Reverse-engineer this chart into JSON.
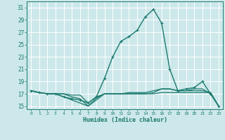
{
  "xlabel": "Humidex (Indice chaleur)",
  "bg_color": "#cde8ea",
  "grid_color": "#ffffff",
  "line_color": "#1a7a6e",
  "xlim": [
    -0.5,
    23.5
  ],
  "ylim": [
    14.5,
    32.0
  ],
  "yticks": [
    15,
    17,
    19,
    21,
    23,
    25,
    27,
    29,
    31
  ],
  "xticks": [
    0,
    1,
    2,
    3,
    4,
    5,
    6,
    7,
    8,
    9,
    10,
    11,
    12,
    13,
    14,
    15,
    16,
    17,
    18,
    19,
    20,
    21,
    22,
    23
  ],
  "lines": [
    {
      "x": [
        0,
        1,
        2,
        3,
        4,
        5,
        6,
        7,
        8,
        9,
        10,
        11,
        12,
        13,
        14,
        15,
        16,
        17,
        18,
        19,
        20,
        21,
        22,
        23
      ],
      "y": [
        17.5,
        17.2,
        17.0,
        17.0,
        17.0,
        16.8,
        16.8,
        15.5,
        16.5,
        17.0,
        17.0,
        17.0,
        17.0,
        17.0,
        17.0,
        17.0,
        17.2,
        17.2,
        17.2,
        17.2,
        17.2,
        17.2,
        17.2,
        15.0
      ],
      "marker": null,
      "lw": 0.9
    },
    {
      "x": [
        0,
        1,
        2,
        3,
        4,
        5,
        6,
        7,
        8,
        9,
        10,
        11,
        12,
        13,
        14,
        15,
        16,
        17,
        18,
        19,
        20,
        21,
        22,
        23
      ],
      "y": [
        17.5,
        17.2,
        17.0,
        17.0,
        17.0,
        16.5,
        16.2,
        15.0,
        16.3,
        17.0,
        17.0,
        17.0,
        17.0,
        17.0,
        17.0,
        17.2,
        17.8,
        17.8,
        17.5,
        17.5,
        17.5,
        17.5,
        17.2,
        15.0
      ],
      "marker": null,
      "lw": 0.9
    },
    {
      "x": [
        0,
        1,
        2,
        3,
        4,
        5,
        6,
        7,
        8,
        9,
        10,
        11,
        12,
        13,
        14,
        15,
        16,
        17,
        18,
        19,
        20,
        21,
        22,
        23
      ],
      "y": [
        17.5,
        17.2,
        17.0,
        17.0,
        16.5,
        16.0,
        15.5,
        15.0,
        16.0,
        17.0,
        17.0,
        17.0,
        17.2,
        17.2,
        17.2,
        17.5,
        17.8,
        17.8,
        17.5,
        17.5,
        17.8,
        17.8,
        17.0,
        15.0
      ],
      "marker": null,
      "lw": 0.9
    },
    {
      "x": [
        0,
        1,
        2,
        3,
        4,
        5,
        6,
        7,
        8,
        9,
        10,
        11,
        12,
        13,
        14,
        15,
        16,
        17,
        18,
        19,
        20,
        21,
        22,
        23
      ],
      "y": [
        17.5,
        17.2,
        17.0,
        17.0,
        16.5,
        16.2,
        16.0,
        15.5,
        16.5,
        19.5,
        23.0,
        25.5,
        26.3,
        27.3,
        29.5,
        30.7,
        28.5,
        21.0,
        17.5,
        17.8,
        18.0,
        19.0,
        17.0,
        15.0
      ],
      "marker": "+",
      "lw": 1.0
    }
  ]
}
